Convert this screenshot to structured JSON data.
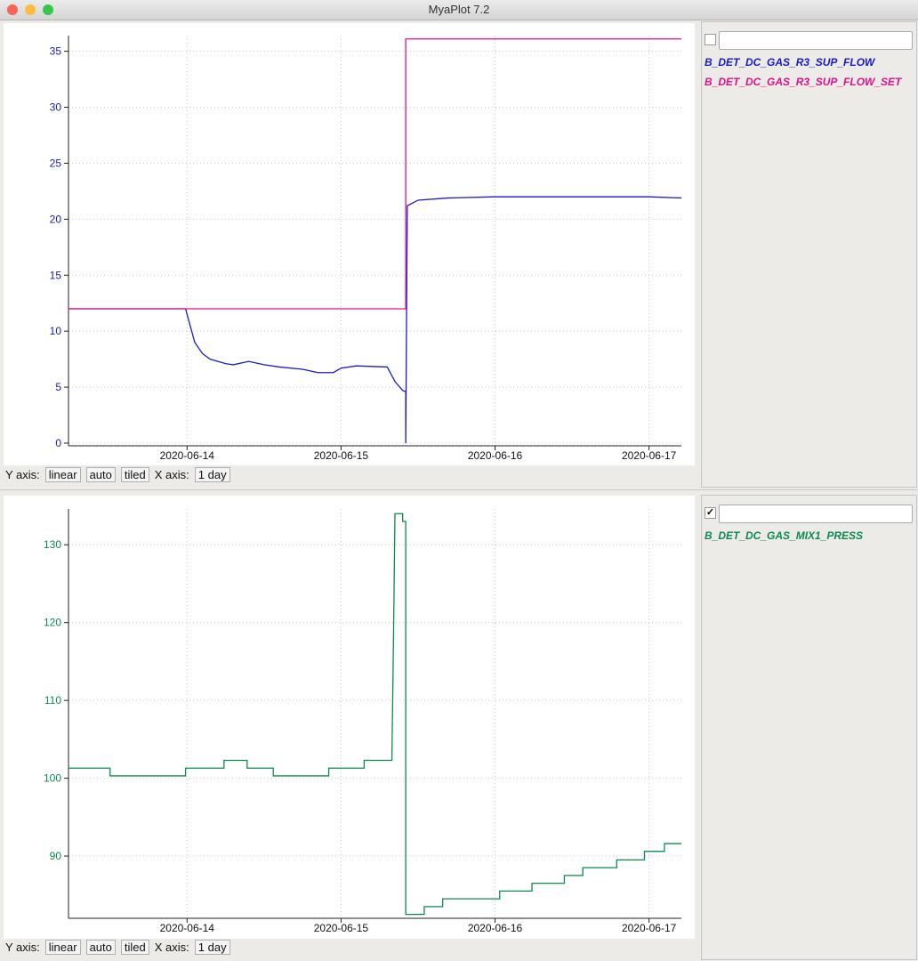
{
  "window": {
    "title": "MyaPlot 7.2"
  },
  "chart_data": [
    {
      "type": "line",
      "grid": true,
      "tick_color": "#1a1ab0",
      "xlim": [
        13.23,
        17.21
      ],
      "xticks": [
        {
          "value": 14,
          "label": "2020-06-14"
        },
        {
          "value": 15,
          "label": "2020-06-15"
        },
        {
          "value": 16,
          "label": "2020-06-16"
        },
        {
          "value": 17,
          "label": "2020-06-17"
        }
      ],
      "ylim": [
        0,
        36.4
      ],
      "yticks": [
        0,
        5,
        10,
        15,
        20,
        25,
        30,
        35
      ],
      "legend_checked": false,
      "series": [
        {
          "name": "B_DET_DC_GAS_R3_SUP_FLOW",
          "color": "#1a1ac8",
          "x": [
            13.23,
            13.99,
            14.05,
            14.1,
            14.15,
            14.25,
            14.3,
            14.4,
            14.5,
            14.6,
            14.75,
            14.85,
            14.95,
            15.0,
            15.1,
            15.3,
            15.35,
            15.4,
            15.42,
            15.42,
            15.43,
            15.5,
            15.7,
            16.0,
            16.5,
            17.0,
            17.21
          ],
          "values": [
            12,
            12,
            9,
            8,
            7.5,
            7.1,
            7.0,
            7.3,
            7.0,
            6.8,
            6.6,
            6.3,
            6.3,
            6.7,
            6.9,
            6.8,
            5.5,
            4.7,
            4.6,
            0,
            21.2,
            21.7,
            21.9,
            22.0,
            22.0,
            22.0,
            21.9
          ]
        },
        {
          "name": "B_DET_DC_GAS_R3_SUP_FLOW_SET",
          "color": "#e0128a",
          "x": [
            13.23,
            15.42,
            15.42,
            17.21
          ],
          "values": [
            12,
            12,
            36.1,
            36.1
          ]
        }
      ]
    },
    {
      "type": "line",
      "grid": true,
      "tick_color": "#0d8a4f",
      "xlim": [
        13.23,
        17.21
      ],
      "xticks": [
        {
          "value": 14,
          "label": "2020-06-14"
        },
        {
          "value": 15,
          "label": "2020-06-15"
        },
        {
          "value": 16,
          "label": "2020-06-16"
        },
        {
          "value": 17,
          "label": "2020-06-17"
        }
      ],
      "ylim": [
        82,
        134.6
      ],
      "yticks": [
        90,
        100,
        110,
        120,
        130
      ],
      "legend_checked": true,
      "series": [
        {
          "name": "B_DET_DC_GAS_MIX1_PRESS",
          "color": "#0d8a4f",
          "x": [
            13.23,
            13.5,
            13.5,
            13.99,
            13.99,
            14.24,
            14.24,
            14.39,
            14.39,
            14.56,
            14.56,
            14.92,
            14.92,
            15.15,
            15.15,
            15.33,
            15.34,
            15.35,
            15.4,
            15.4,
            15.42,
            15.42,
            15.54,
            15.54,
            15.66,
            15.66,
            16.03,
            16.03,
            16.24,
            16.24,
            16.45,
            16.45,
            16.57,
            16.57,
            16.79,
            16.79,
            16.97,
            16.97,
            17.1,
            17.1,
            17.21
          ],
          "values": [
            101.3,
            101.3,
            100.3,
            100.3,
            101.3,
            101.3,
            102.3,
            102.3,
            101.3,
            101.3,
            100.3,
            100.3,
            101.3,
            101.3,
            102.3,
            102.3,
            117,
            134,
            134,
            133,
            133,
            82.5,
            82.5,
            83.5,
            83.5,
            84.5,
            84.5,
            85.5,
            85.5,
            86.5,
            86.5,
            87.5,
            87.5,
            88.5,
            88.5,
            89.5,
            89.5,
            90.6,
            90.6,
            91.6,
            91.6
          ]
        }
      ]
    }
  ],
  "panels": [
    {
      "y_axis_label": "Y axis:",
      "y_scale": "linear",
      "y_range": "auto",
      "layout": "tiled",
      "x_axis_label": "X axis:",
      "x_span": "1 day"
    },
    {
      "y_axis_label": "Y axis:",
      "y_scale": "linear",
      "y_range": "auto",
      "layout": "tiled",
      "x_axis_label": "X axis:",
      "x_span": "1 day"
    }
  ]
}
